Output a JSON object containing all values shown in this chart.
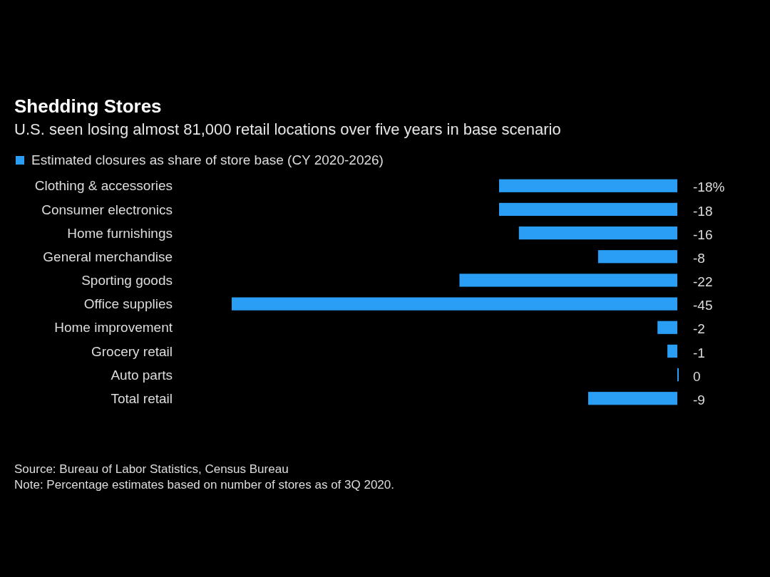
{
  "chart_data": {
    "type": "bar",
    "orientation": "horizontal",
    "title": "Shedding Stores",
    "subtitle": "U.S. seen losing almost 81,000 retail locations over five years in base scenario",
    "categories": [
      "Clothing & accessories",
      "Consumer electronics",
      "Home furnishings",
      "General merchandise",
      "Sporting goods",
      "Office supplies",
      "Home improvement",
      "Grocery retail",
      "Auto parts",
      "Total retail"
    ],
    "series": [
      {
        "name": "Estimated closures as share of store base (CY 2020-2026)",
        "color": "#2a9df4",
        "values": [
          -18,
          -18,
          -16,
          -8,
          -22,
          -45,
          -2,
          -1,
          0,
          -9
        ],
        "value_labels": [
          "-18%",
          "-18",
          "-16",
          "-8",
          "-22",
          "-45",
          "-2",
          "-1",
          "0",
          "-9"
        ]
      }
    ],
    "legend": "top left",
    "grid": false,
    "annotations": [
      "Source: Bureau of Labor Statistics, Census Bureau",
      "Note: Percentage estimates based on number of stores as of 3Q 2020."
    ]
  }
}
